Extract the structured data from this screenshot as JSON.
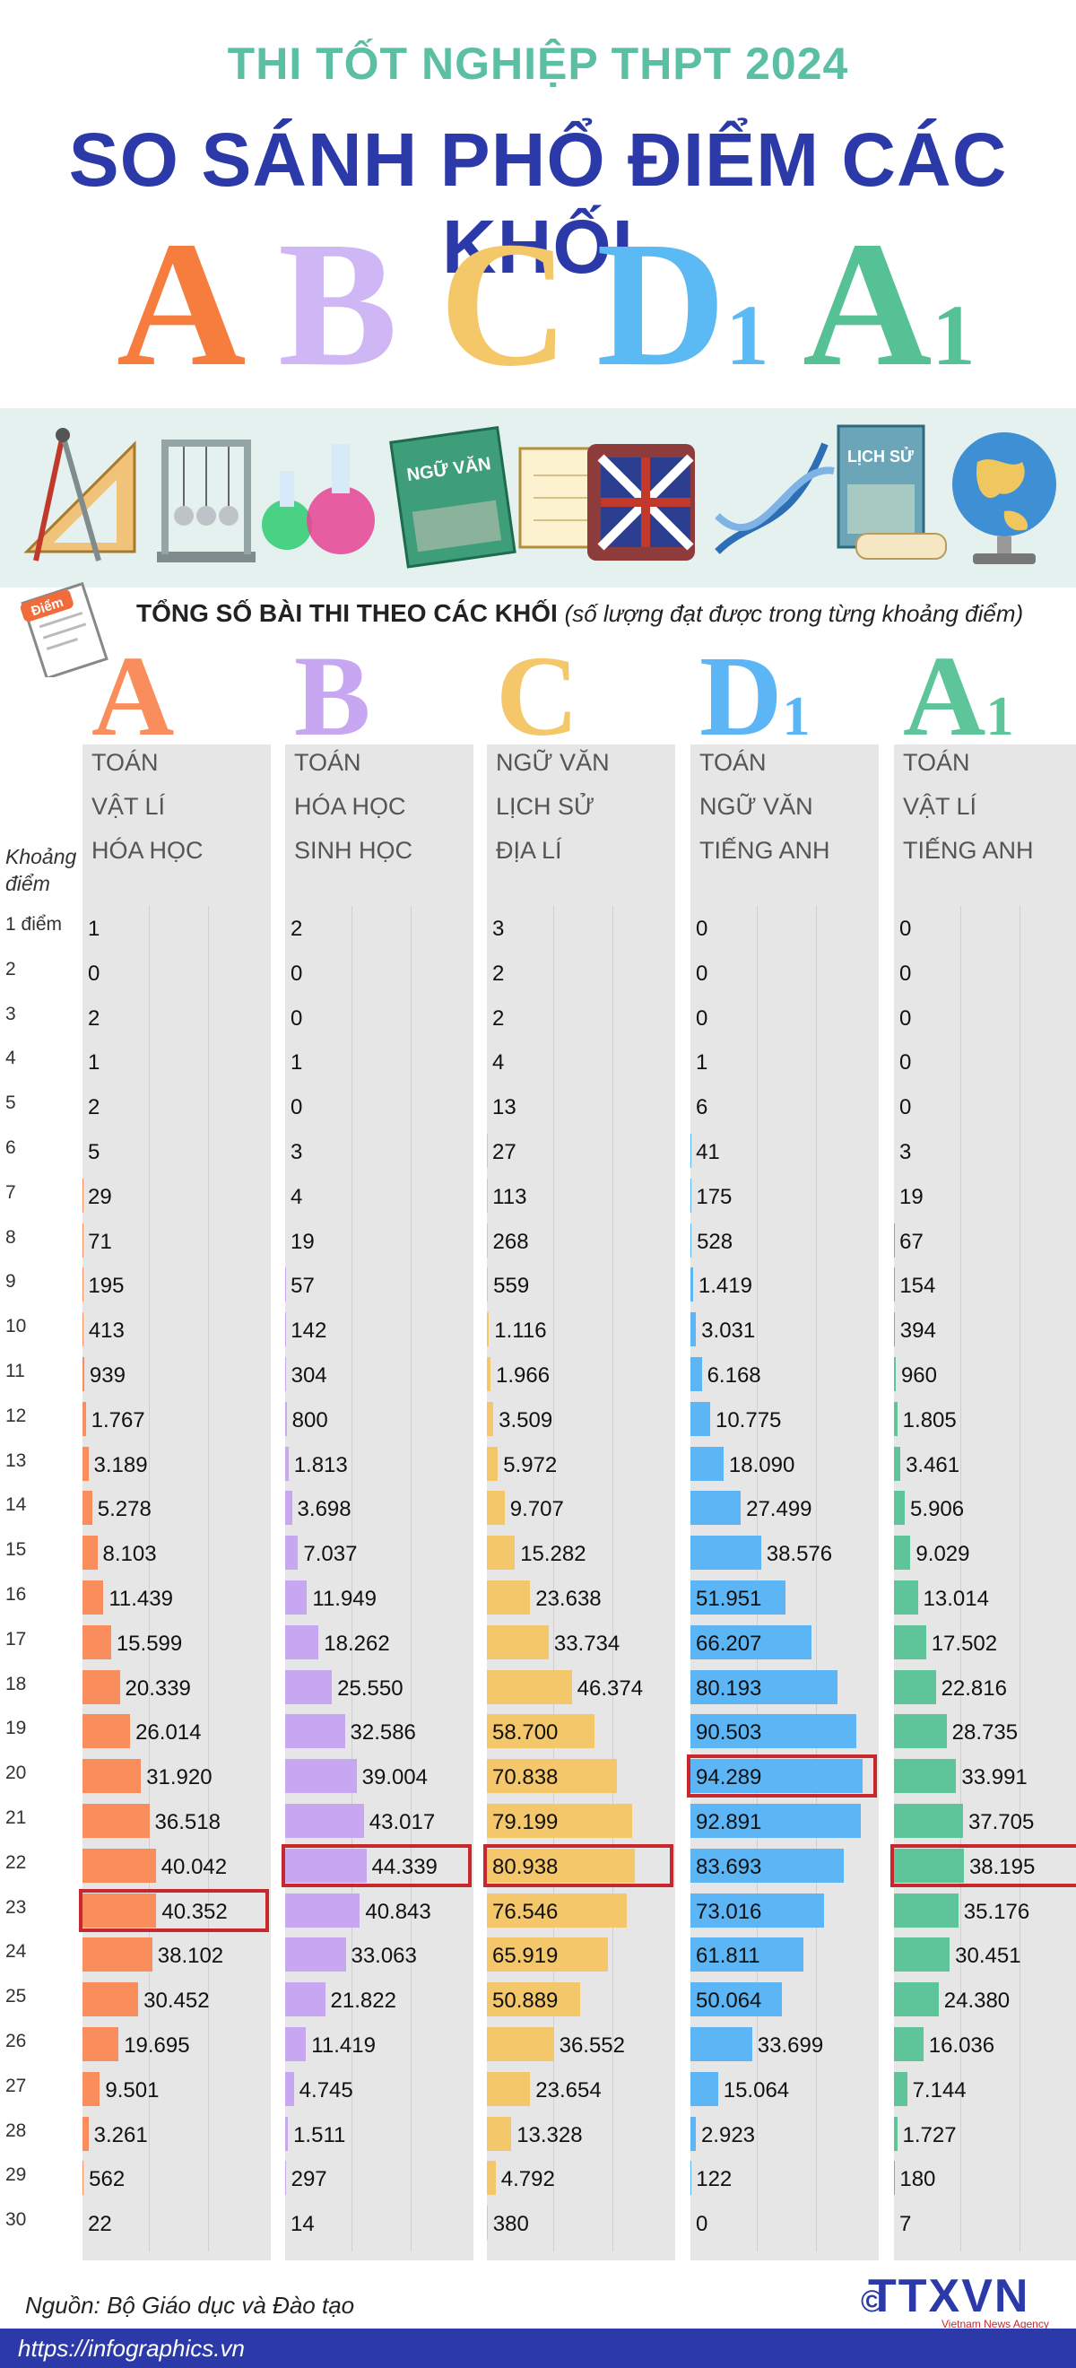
{
  "header": {
    "supertitle": "THI TỐT NGHIỆP THPT 2024",
    "title": "SO SÁNH PHỔ ĐIỂM CÁC KHỐI",
    "letters": [
      {
        "main": "A",
        "sub": "",
        "color": "#f77d3f"
      },
      {
        "main": "B",
        "sub": "",
        "color": "#cfb6f5"
      },
      {
        "main": "C",
        "sub": "",
        "color": "#f4c768"
      },
      {
        "main": "D",
        "sub": "1",
        "color": "#5bb9f3"
      },
      {
        "main": "A",
        "sub": "1",
        "color": "#56c194"
      }
    ]
  },
  "banner": {
    "icons": [
      "ruler-compass-icon",
      "newtons-cradle-icon",
      "flasks-icon",
      "ngu-van-book-icon",
      "book-icon",
      "english-book-icon",
      "dna-icon",
      "lich-su-book-icon",
      "globe-icon"
    ],
    "book_label_1": "NGỮ VĂN",
    "book_label_2": "LỊCH SỬ"
  },
  "subtitle": {
    "main": "TỔNG SỐ BÀI THI THEO CÁC KHỐI",
    "note": "(số lượng đạt được trong từng khoảng điểm)",
    "badge_label": "Điểm"
  },
  "row_header": "Khoảng điểm",
  "source": "Nguồn: Bộ Giáo dục và Đào tạo",
  "footer_link": "https://infographics.vn",
  "logo": {
    "c": "©",
    "name": "TTXVN",
    "sub": "Vietnam News Agency"
  },
  "chart_data": {
    "type": "bar",
    "orientation": "horizontal",
    "categories": [
      "1 điểm",
      "2",
      "3",
      "4",
      "5",
      "6",
      "7",
      "8",
      "9",
      "10",
      "11",
      "12",
      "13",
      "14",
      "15",
      "16",
      "17",
      "18",
      "19",
      "20",
      "21",
      "22",
      "23",
      "24",
      "25",
      "26",
      "27",
      "28",
      "29",
      "30"
    ],
    "series": [
      {
        "name": "A",
        "sub": "",
        "subjects": [
          "TOÁN",
          "VẬT LÍ",
          "HÓA HỌC"
        ],
        "color": "#f98d5c",
        "values": [
          1,
          0,
          2,
          1,
          2,
          5,
          29,
          71,
          195,
          413,
          939,
          1767,
          3189,
          5278,
          8103,
          11439,
          15599,
          20339,
          26014,
          31920,
          36518,
          40042,
          40352,
          38102,
          30452,
          19695,
          9501,
          3261,
          562,
          22
        ],
        "labels": [
          "1",
          "0",
          "2",
          "1",
          "2",
          "5",
          "29",
          "71",
          "195",
          "413",
          "939",
          "1.767",
          "3.189",
          "5.278",
          "8.103",
          "11.439",
          "15.599",
          "20.339",
          "26.014",
          "31.920",
          "36.518",
          "40.042",
          "40.352",
          "38.102",
          "30.452",
          "19.695",
          "9.501",
          "3.261",
          "562",
          "22"
        ],
        "highlight": 22
      },
      {
        "name": "B",
        "sub": "",
        "subjects": [
          "TOÁN",
          "HÓA HỌC",
          "SINH HỌC"
        ],
        "color": "#c7a6f2",
        "values": [
          2,
          0,
          0,
          1,
          0,
          3,
          4,
          19,
          57,
          142,
          304,
          800,
          1813,
          3698,
          7037,
          11949,
          18262,
          25550,
          32586,
          39004,
          43017,
          44339,
          40843,
          33063,
          21822,
          11419,
          4745,
          1511,
          297,
          14
        ],
        "labels": [
          "2",
          "0",
          "0",
          "1",
          "0",
          "3",
          "4",
          "19",
          "57",
          "142",
          "304",
          "800",
          "1.813",
          "3.698",
          "7.037",
          "11.949",
          "18.262",
          "25.550",
          "32.586",
          "39.004",
          "43.017",
          "44.339",
          "40.843",
          "33.063",
          "21.822",
          "11.419",
          "4.745",
          "1.511",
          "297",
          "14"
        ],
        "highlight": 21
      },
      {
        "name": "C",
        "sub": "",
        "subjects": [
          "NGỮ VĂN",
          "LỊCH SỬ",
          "ĐỊA LÍ"
        ],
        "color": "#f4c76a",
        "values": [
          3,
          2,
          2,
          4,
          13,
          27,
          113,
          268,
          559,
          1116,
          1966,
          3509,
          5972,
          9707,
          15282,
          23638,
          33734,
          46374,
          58700,
          70838,
          79199,
          80938,
          76546,
          65919,
          50889,
          36552,
          23654,
          13328,
          4792,
          380
        ],
        "labels": [
          "3",
          "2",
          "2",
          "4",
          "13",
          "27",
          "113",
          "268",
          "559",
          "1.116",
          "1.966",
          "3.509",
          "5.972",
          "9.707",
          "15.282",
          "23.638",
          "33.734",
          "46.374",
          "58.700",
          "70.838",
          "79.199",
          "80.938",
          "76.546",
          "65.919",
          "50.889",
          "36.552",
          "23.654",
          "13.328",
          "4.792",
          "380"
        ],
        "highlight": 21
      },
      {
        "name": "D",
        "sub": "1",
        "subjects": [
          "TOÁN",
          "NGỮ VĂN",
          "TIẾNG ANH"
        ],
        "color": "#5cb6f6",
        "values": [
          0,
          0,
          0,
          1,
          6,
          41,
          175,
          528,
          1419,
          3031,
          6168,
          10775,
          18090,
          27499,
          38576,
          51951,
          66207,
          80193,
          90503,
          94289,
          92891,
          83693,
          73016,
          61811,
          50064,
          33699,
          15064,
          2923,
          122,
          0
        ],
        "labels": [
          "0",
          "0",
          "0",
          "1",
          "6",
          "41",
          "175",
          "528",
          "1.419",
          "3.031",
          "6.168",
          "10.775",
          "18.090",
          "27.499",
          "38.576",
          "51.951",
          "66.207",
          "80.193",
          "90.503",
          "94.289",
          "92.891",
          "83.693",
          "73.016",
          "61.811",
          "50.064",
          "33.699",
          "15.064",
          "2.923",
          "122",
          "0"
        ],
        "highlight": 19
      },
      {
        "name": "A",
        "sub": "1",
        "subjects": [
          "TOÁN",
          "VẬT LÍ",
          "TIẾNG ANH"
        ],
        "color": "#5ec49a",
        "values": [
          0,
          0,
          0,
          0,
          0,
          3,
          19,
          67,
          154,
          394,
          960,
          1805,
          3461,
          5906,
          9029,
          13014,
          17502,
          22816,
          28735,
          33991,
          37705,
          38195,
          35176,
          30451,
          24380,
          16036,
          7144,
          1727,
          180,
          7
        ],
        "labels": [
          "0",
          "0",
          "0",
          "0",
          "0",
          "3",
          "19",
          "67",
          "154",
          "394",
          "960",
          "1.805",
          "3.461",
          "5.906",
          "9.029",
          "13.014",
          "17.502",
          "22.816",
          "28.735",
          "33.991",
          "37.705",
          "38.195",
          "35.176",
          "30.451",
          "24.380",
          "16.036",
          "7.144",
          "1.727",
          "180",
          "7"
        ],
        "highlight": 21
      }
    ]
  }
}
